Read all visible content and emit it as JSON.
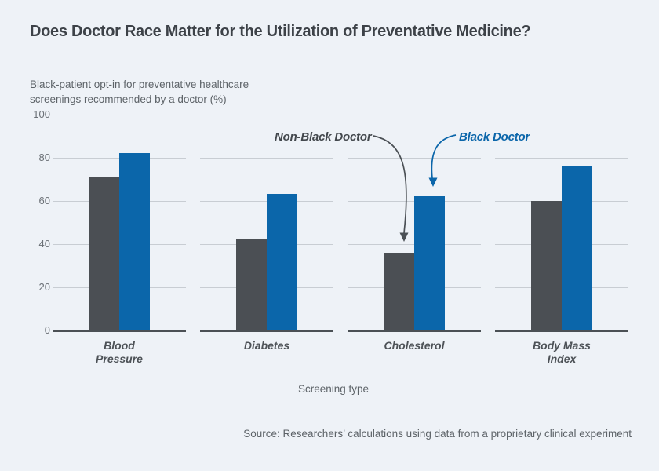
{
  "page": {
    "background_color": "#eef2f7",
    "title": "Does Doctor Race Matter for the Utilization of Preventative Medicine?"
  },
  "chart_data": {
    "type": "bar",
    "title": "Does Doctor Race Matter for the Utilization of Preventative Medicine?",
    "subtitle_lines": [
      "Black-patient opt-in for preventative healthcare",
      "screenings recommended by a doctor (%)"
    ],
    "categories": [
      "Blood Pressure",
      "Diabetes",
      "Cholesterol",
      "Body Mass Index"
    ],
    "series": [
      {
        "name": "Non-Black Doctor",
        "color": "#4b4f54",
        "values": [
          71,
          42,
          36,
          60
        ]
      },
      {
        "name": "Black Doctor",
        "color": "#0b66aa",
        "values": [
          82,
          63,
          62,
          76
        ]
      }
    ],
    "xlabel": "Screening type",
    "ylabel": "Black-patient opt-in for preventative healthcare screenings recommended by a doctor (%)",
    "ylim": [
      0,
      100
    ],
    "yticks": [
      0,
      20,
      40,
      60,
      80,
      100
    ],
    "grid": true,
    "grid_color": "#c8cdd3",
    "axis_color": "#4b5055",
    "legend_position": "annotated-arrows",
    "annotations": [
      {
        "text": "Non-Black Doctor",
        "color": "#43484d",
        "points_to": "Cholesterol Non-Black Doctor bar"
      },
      {
        "text": "Black Doctor",
        "color": "#0b66aa",
        "points_to": "Cholesterol Black Doctor bar"
      }
    ],
    "source": "Source: Researchers’ calculations using data from a proprietary clinical experiment"
  }
}
